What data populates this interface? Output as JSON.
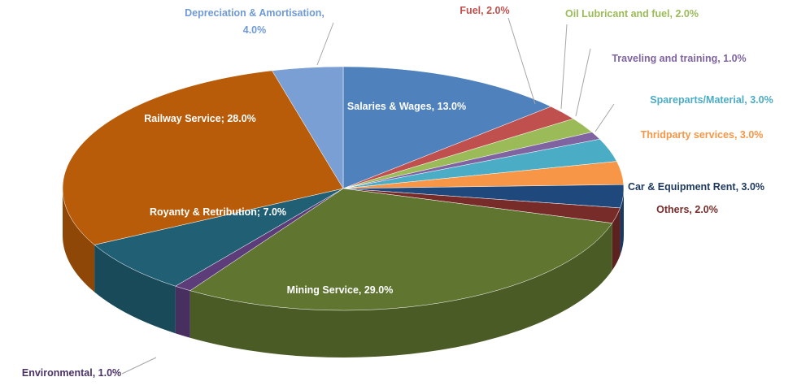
{
  "chart_data": {
    "type": "pie",
    "categories": [
      "Salaries & Wages",
      "Fuel",
      "Oil Lubricant and fuel",
      "Traveling and training",
      "Spareparts/Material",
      "Thridparty services",
      "Car & Equipment Rent",
      "Others",
      "Mining Service",
      "Environmental",
      "Royanty & Retribution",
      "Railway Service",
      "Depreciation & Amortisation"
    ],
    "values": [
      13,
      2,
      2,
      1,
      3,
      3,
      3,
      2,
      29,
      1,
      7,
      28,
      4
    ],
    "value_labels": [
      "13.0%",
      "2.0%",
      "2.0%",
      "1.0%",
      "3.0%",
      "3.0%",
      "3.0%",
      "2.0%",
      "29.0%",
      "1.0%",
      "7.0%",
      "28.0%",
      "4.0%"
    ],
    "label_separators": [
      ", ",
      ", ",
      ", ",
      ", ",
      ", ",
      ", ",
      ", ",
      ", ",
      ", ",
      ", ",
      "; ",
      "; ",
      ","
    ],
    "colors": [
      "#4f81bd",
      "#c0504d",
      "#9bbb59",
      "#8064a2",
      "#4bacc6",
      "#f79646",
      "#1f497d",
      "#772c2a",
      "#5f7530",
      "#5c3d7a",
      "#215f74",
      "#b85c0a",
      "#7a9fd4"
    ]
  }
}
